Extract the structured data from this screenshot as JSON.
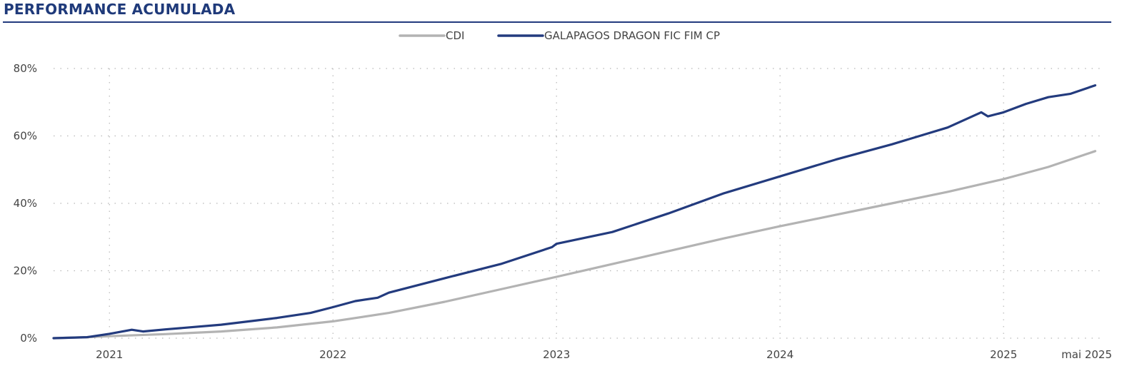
{
  "title": "PERFORMANCE ACUMULADA",
  "chart_data": {
    "type": "line",
    "title": "PERFORMANCE ACUMULADA",
    "xlabel": "",
    "ylabel": "",
    "x_tick_labels": [
      "2021",
      "2022",
      "2023",
      "2024",
      "2025",
      "mai 2025"
    ],
    "x_ticks": [
      2021.0,
      2022.0,
      2023.0,
      2024.0,
      2025.0,
      2025.41
    ],
    "y_tick_labels": [
      "0%",
      "20%",
      "40%",
      "60%",
      "80%"
    ],
    "y_ticks": [
      0,
      20,
      40,
      60,
      80
    ],
    "xlim": [
      2020.75,
      2025.45
    ],
    "ylim": [
      0,
      80
    ],
    "grid": true,
    "legend_position": "top-center",
    "series": [
      {
        "name": "CDI",
        "color": "#b3b3b3",
        "x": [
          2020.75,
          2020.9,
          2021.0,
          2021.25,
          2021.5,
          2021.75,
          2022.0,
          2022.25,
          2022.5,
          2022.75,
          2023.0,
          2023.25,
          2023.5,
          2023.75,
          2024.0,
          2024.25,
          2024.5,
          2024.75,
          2025.0,
          2025.2,
          2025.41
        ],
        "y": [
          0,
          0.3,
          0.6,
          1.2,
          2.0,
          3.2,
          5.0,
          7.5,
          10.8,
          14.5,
          18.2,
          22.0,
          25.8,
          29.6,
          33.2,
          36.6,
          40.0,
          43.4,
          47.2,
          50.8,
          55.5
        ]
      },
      {
        "name": "GALAPAGOS DRAGON FIC FIM CP",
        "color": "#233b7e",
        "x": [
          2020.75,
          2020.9,
          2021.0,
          2021.1,
          2021.15,
          2021.25,
          2021.5,
          2021.75,
          2021.9,
          2022.0,
          2022.1,
          2022.2,
          2022.25,
          2022.5,
          2022.75,
          2022.98,
          2023.0,
          2023.25,
          2023.5,
          2023.75,
          2024.0,
          2024.25,
          2024.5,
          2024.75,
          2024.9,
          2024.93,
          2025.0,
          2025.1,
          2025.2,
          2025.3,
          2025.41
        ],
        "y": [
          0,
          0.3,
          1.3,
          2.5,
          2.0,
          2.6,
          4.0,
          6.0,
          7.5,
          9.2,
          11.0,
          12.0,
          13.5,
          17.8,
          22.0,
          27.0,
          28.0,
          31.5,
          37.0,
          43.0,
          48.0,
          53.0,
          57.5,
          62.5,
          67.0,
          65.8,
          67.0,
          69.5,
          71.5,
          72.5,
          75.0
        ]
      }
    ]
  }
}
